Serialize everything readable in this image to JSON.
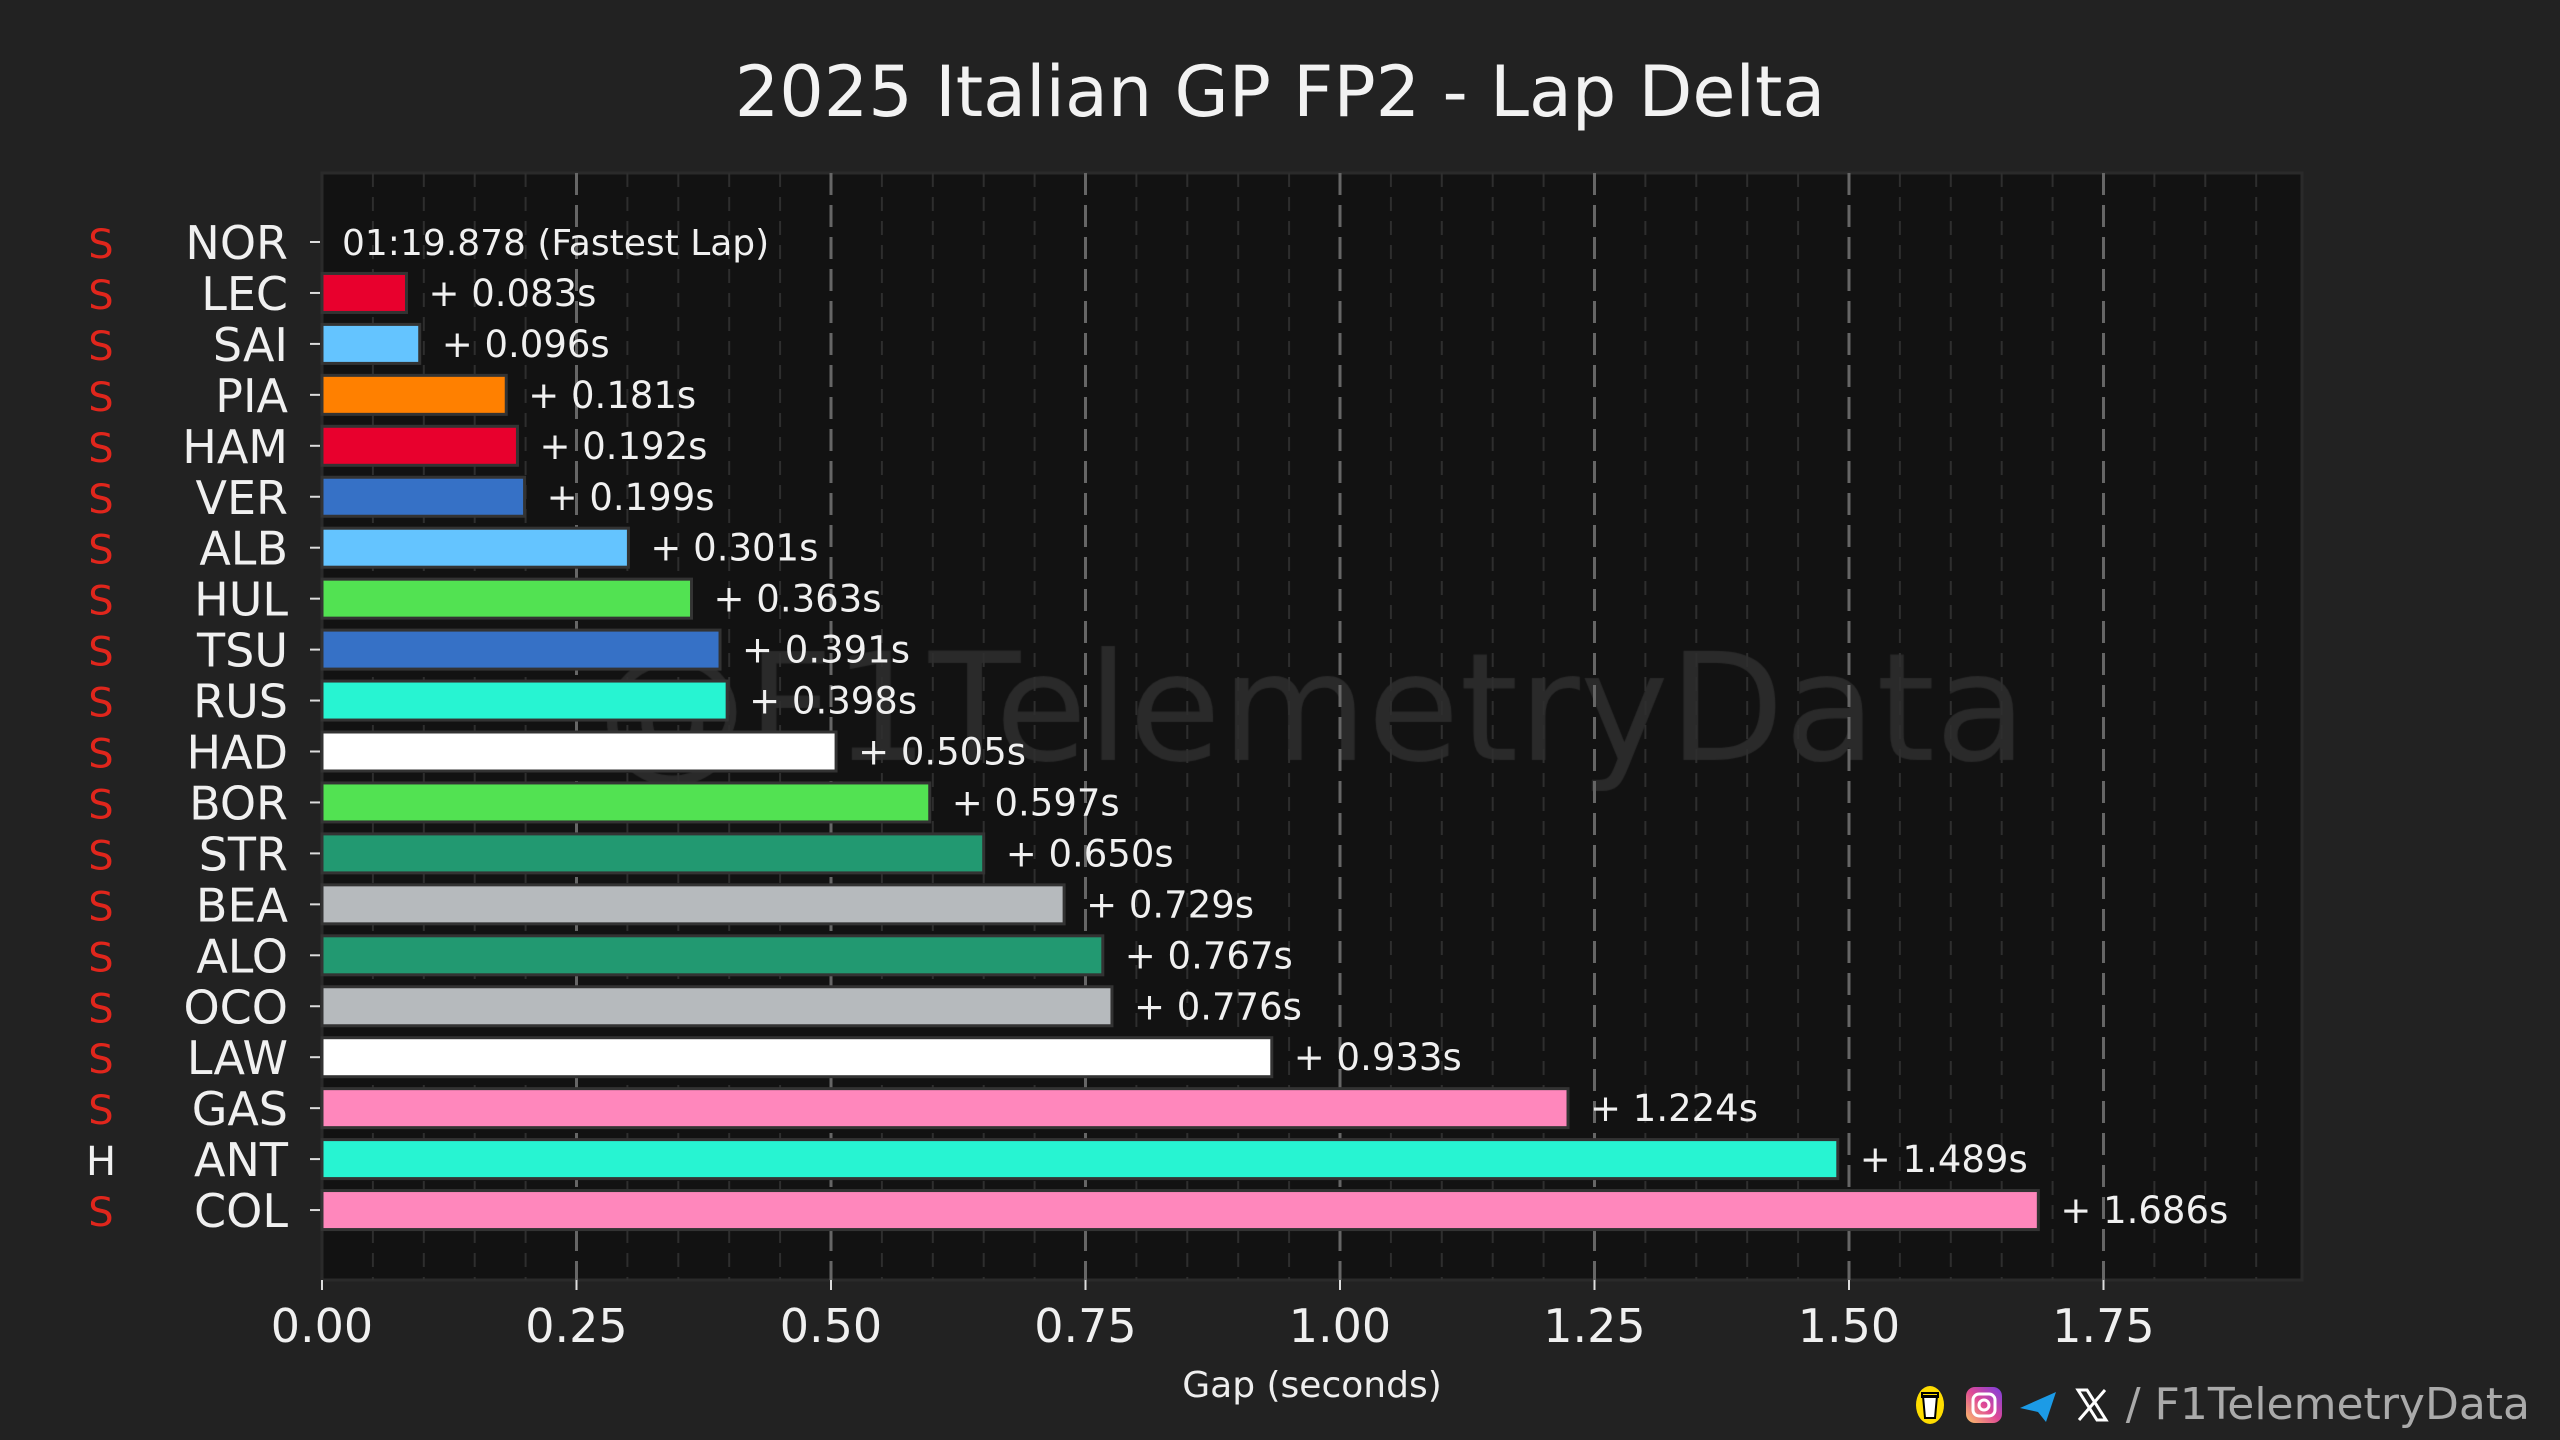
{
  "chart_data": {
    "type": "bar",
    "orientation": "horizontal",
    "title": "2025 Italian GP FP2 - Lap Delta",
    "xlabel": "Gap (seconds)",
    "ylabel": "",
    "xlim": [
      0,
      1.945
    ],
    "xticks": [
      "0.00",
      "0.25",
      "0.50",
      "0.75",
      "1.00",
      "1.25",
      "1.50",
      "1.75"
    ],
    "grid": "vertical dashed",
    "fastest_label": "01:19.878 (Fastest Lap)",
    "watermark": "@F1TelemetryData",
    "categories": [
      "NOR",
      "LEC",
      "SAI",
      "PIA",
      "HAM",
      "VER",
      "ALB",
      "HUL",
      "TSU",
      "RUS",
      "HAD",
      "BOR",
      "STR",
      "BEA",
      "ALO",
      "OCO",
      "LAW",
      "GAS",
      "ANT",
      "COL"
    ],
    "compounds": [
      "S",
      "S",
      "S",
      "S",
      "S",
      "S",
      "S",
      "S",
      "S",
      "S",
      "S",
      "S",
      "S",
      "S",
      "S",
      "S",
      "S",
      "S",
      "H",
      "S"
    ],
    "values": [
      0,
      0.083,
      0.096,
      0.181,
      0.192,
      0.199,
      0.301,
      0.363,
      0.391,
      0.398,
      0.505,
      0.597,
      0.65,
      0.729,
      0.767,
      0.776,
      0.933,
      1.224,
      1.489,
      1.686
    ],
    "labels": [
      "",
      "+ 0.083s",
      "+ 0.096s",
      "+ 0.181s",
      "+ 0.192s",
      "+ 0.199s",
      "+ 0.301s",
      "+ 0.363s",
      "+ 0.391s",
      "+ 0.398s",
      "+ 0.505s",
      "+ 0.597s",
      "+ 0.650s",
      "+ 0.729s",
      "+ 0.767s",
      "+ 0.776s",
      "+ 0.933s",
      "+ 1.224s",
      "+ 1.489s",
      "+ 1.686s"
    ],
    "colors": [
      "#ff8000",
      "#e8002d",
      "#64c4ff",
      "#ff8000",
      "#e8002d",
      "#3671c6",
      "#64c4ff",
      "#52e252",
      "#3671c6",
      "#27f4d2",
      "#ffffff",
      "#52e252",
      "#229971",
      "#b6babd",
      "#229971",
      "#b6babd",
      "#ffffff",
      "#ff87bc",
      "#27f4d2",
      "#ff87bc"
    ],
    "compound_colors": {
      "S": "#e0261c",
      "H": "#f0f0f0"
    }
  },
  "footer": {
    "handle": "/ F1TelemetryData",
    "icons": [
      "buymeacoffee-icon",
      "instagram-icon",
      "telegram-icon",
      "x-icon"
    ]
  }
}
